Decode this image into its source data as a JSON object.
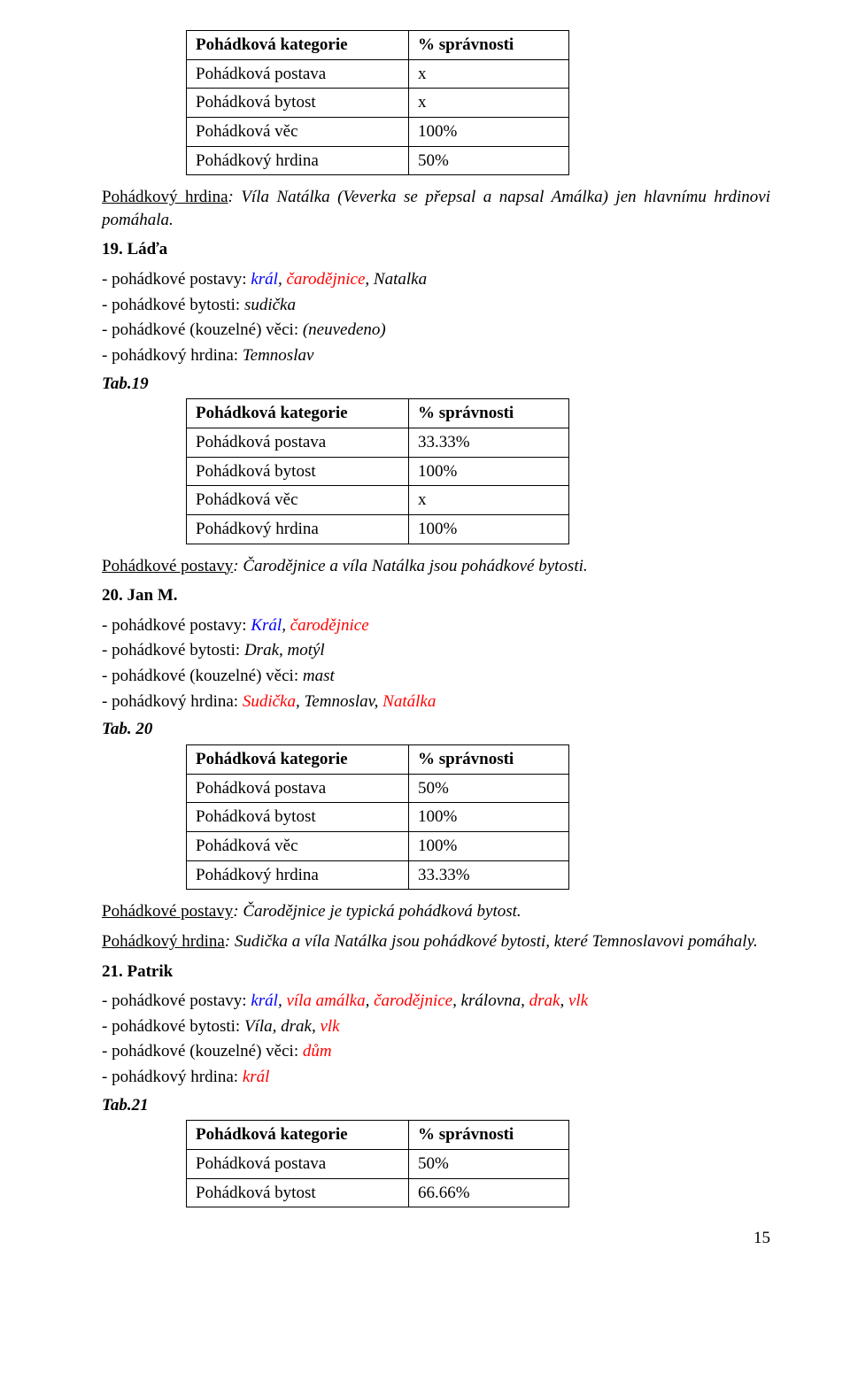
{
  "tables": {
    "t1": {
      "h1": "Pohádková kategorie",
      "h2": "% správnosti",
      "r1a": "Pohádková postava",
      "r1b": "x",
      "r2a": "Pohádková bytost",
      "r2b": "x",
      "r3a": "Pohádková věc",
      "r3b": "100%",
      "r4a": "Pohádkový hrdina",
      "r4b": "50%"
    },
    "t2": {
      "h1": "Pohádková kategorie",
      "h2": "% správnosti",
      "r1a": "Pohádková postava",
      "r1b": "33.33%",
      "r2a": "Pohádková bytost",
      "r2b": "100%",
      "r3a": "Pohádková věc",
      "r3b": "x",
      "r4a": "Pohádkový hrdina",
      "r4b": "100%"
    },
    "t3": {
      "h1": "Pohádková kategorie",
      "h2": "% správnosti",
      "r1a": "Pohádková postava",
      "r1b": "50%",
      "r2a": "Pohádková bytost",
      "r2b": "100%",
      "r3a": "Pohádková věc",
      "r3b": "100%",
      "r4a": "Pohádkový hrdina",
      "r4b": "33.33%"
    },
    "t4": {
      "h1": "Pohádková kategorie",
      "h2": "% správnosti",
      "r1a": "Pohádková postava",
      "r1b": "50%",
      "r2a": "Pohádková bytost",
      "r2b": "66.66%"
    }
  },
  "p1": {
    "label": "Pohádkový hrdina",
    "text": ": Víla Natálka (Veverka se přepsal a napsal Amálka) jen hlavnímu hrdinovi pomáhala."
  },
  "h19": "19. Láďa",
  "s19": {
    "l1a": "- pohádkové postavy: ",
    "l1b": "král",
    "l1c": ", ",
    "l1d": "čarodějnice",
    "l1e": ", Natalka",
    "l2a": "- pohádkové bytosti: ",
    "l2b": "sudička",
    "l3a": "- pohádkové (kouzelné) věci: ",
    "l3b": "(neuvedeno)",
    "l4a": "- pohádkový hrdina: ",
    "l4b": "Temnoslav"
  },
  "tab19": "Tab.19",
  "p2": {
    "label": "Pohádkové postavy",
    "text": ": Čarodějnice a víla Natálka jsou pohádkové bytosti."
  },
  "h20": "20. Jan M.",
  "s20": {
    "l1a": "- pohádkové postavy: ",
    "l1b": "Král",
    "l1c": ", ",
    "l1d": "čarodějnice",
    "l2a": "- pohádkové bytosti: ",
    "l2b": "Drak, motýl",
    "l3a": "- pohádkové (kouzelné) věci: ",
    "l3b": "mast",
    "l4a": "- pohádkový hrdina: ",
    "l4b": "Sudička",
    "l4c": ", Temnoslav, ",
    "l4d": "Natálka"
  },
  "tab20": "Tab. 20",
  "p3": {
    "label": "Pohádkové postavy",
    "text": ": Čarodějnice je typická pohádková bytost."
  },
  "p4": {
    "label": "Pohádkový hrdina",
    "text": ": Sudička a víla Natálka jsou pohádkové bytosti, které Temnoslavovi pomáhaly."
  },
  "h21": "21. Patrik",
  "s21": {
    "l1a": "- pohádkové postavy: ",
    "l1b": "král",
    "l1c": ", ",
    "l1d": "víla amálka",
    "l1e": ", ",
    "l1f": "čarodějnice",
    "l1g": ", královna, ",
    "l1h": "drak",
    "l1i": ", ",
    "l1j": "vlk",
    "l2a": "- pohádkové bytosti: ",
    "l2b": "Víla, drak, ",
    "l2c": "vlk",
    "l3a": "- pohádkové (kouzelné) věci: ",
    "l3b": "dům",
    "l4a": "- pohádkový hrdina: ",
    "l4b": "král"
  },
  "tab21": "Tab.21",
  "pagenum": "15"
}
